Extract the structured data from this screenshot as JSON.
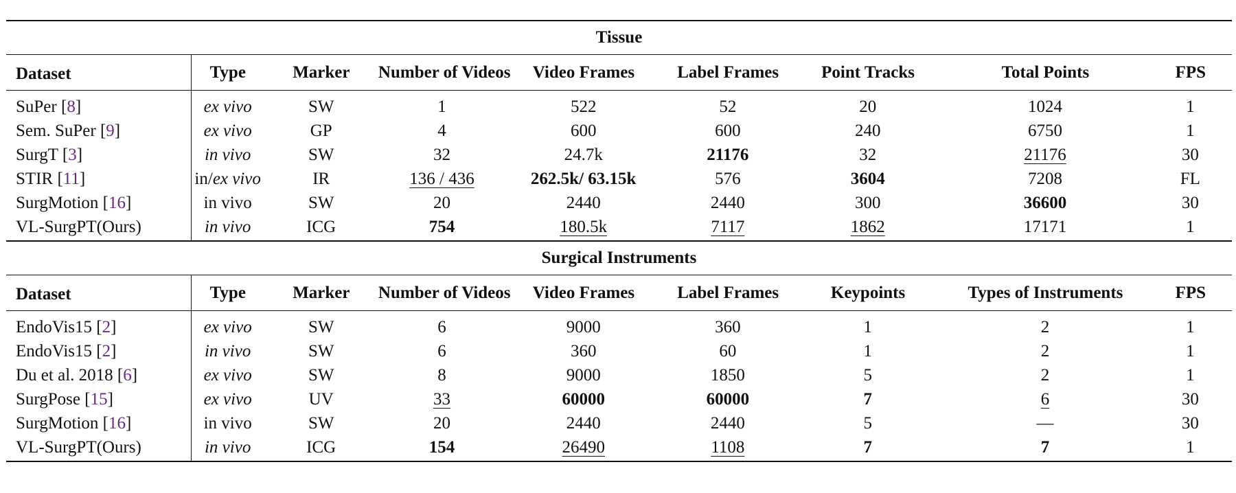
{
  "sections": [
    {
      "title": "Tissue",
      "headers": [
        "Dataset",
        "Type",
        "Marker",
        "Number of Videos",
        "Video Frames",
        "Label Frames",
        "Point Tracks",
        "Total Points",
        "FPS"
      ],
      "rows": [
        {
          "name": "SuPer",
          "cite": "8",
          "type": "ex vivo",
          "type_style": "italic",
          "marker": "SW",
          "cells": [
            {
              "v": "1"
            },
            {
              "v": "522"
            },
            {
              "v": "52"
            },
            {
              "v": "20"
            },
            {
              "v": "1024"
            },
            {
              "v": "1"
            }
          ]
        },
        {
          "name": "Sem. SuPer",
          "cite": "9",
          "type": "ex vivo",
          "type_style": "italic",
          "marker": "GP",
          "cells": [
            {
              "v": "4"
            },
            {
              "v": "600"
            },
            {
              "v": "600"
            },
            {
              "v": "240"
            },
            {
              "v": "6750"
            },
            {
              "v": "1"
            }
          ]
        },
        {
          "name": "SurgT",
          "cite": "3",
          "type": "in vivo",
          "type_style": "italic",
          "marker": "SW",
          "cells": [
            {
              "v": "32"
            },
            {
              "v": "24.7k"
            },
            {
              "v": "21176",
              "s": "b"
            },
            {
              "v": "32"
            },
            {
              "v": "21176",
              "s": "u"
            },
            {
              "v": "30"
            }
          ]
        },
        {
          "name": "STIR",
          "cite": "11",
          "type_prefix": "in/",
          "type": "ex vivo",
          "type_style": "mixed",
          "marker": "IR",
          "cells": [
            {
              "v": "136 / 436",
              "s": "u"
            },
            {
              "v": "262.5k/ 63.15k",
              "s": "b"
            },
            {
              "v": "576"
            },
            {
              "v": "3604",
              "s": "b"
            },
            {
              "v": "7208"
            },
            {
              "v": "FL"
            }
          ]
        },
        {
          "name": "SurgMotion",
          "cite": "16",
          "type": "in vivo",
          "type_style": "normal",
          "marker": "SW",
          "cells": [
            {
              "v": "20"
            },
            {
              "v": "2440"
            },
            {
              "v": "2440"
            },
            {
              "v": "300"
            },
            {
              "v": "36600",
              "s": "b"
            },
            {
              "v": "30"
            }
          ]
        },
        {
          "name": "VL-SurgPT(Ours)",
          "cite": "",
          "type": "in vivo",
          "type_style": "italic",
          "marker": "ICG",
          "cells": [
            {
              "v": "754",
              "s": "b"
            },
            {
              "v": "180.5k",
              "s": "u"
            },
            {
              "v": "7117",
              "s": "u"
            },
            {
              "v": "1862",
              "s": "u"
            },
            {
              "v": "17171"
            },
            {
              "v": "1"
            }
          ]
        }
      ]
    },
    {
      "title": "Surgical Instruments",
      "headers": [
        "Dataset",
        "Type",
        "Marker",
        "Number of Videos",
        "Video Frames",
        "Label Frames",
        "Keypoints",
        "Types of Instruments",
        "FPS"
      ],
      "rows": [
        {
          "name": "EndoVis15",
          "cite": "2",
          "type": "ex vivo",
          "type_style": "italic",
          "marker": "SW",
          "cells": [
            {
              "v": "6"
            },
            {
              "v": "9000"
            },
            {
              "v": "360"
            },
            {
              "v": "1"
            },
            {
              "v": "2"
            },
            {
              "v": "1"
            }
          ]
        },
        {
          "name": "EndoVis15",
          "cite": "2",
          "type": "in vivo",
          "type_style": "italic",
          "marker": "SW",
          "cells": [
            {
              "v": "6"
            },
            {
              "v": "360"
            },
            {
              "v": "60"
            },
            {
              "v": "1"
            },
            {
              "v": "2"
            },
            {
              "v": "1"
            }
          ]
        },
        {
          "name": "Du et al. 2018",
          "cite": "6",
          "type": "ex vivo",
          "type_style": "italic",
          "marker": "SW",
          "cells": [
            {
              "v": "8"
            },
            {
              "v": "9000"
            },
            {
              "v": "1850"
            },
            {
              "v": "5"
            },
            {
              "v": "2"
            },
            {
              "v": "1"
            }
          ]
        },
        {
          "name": "SurgPose",
          "cite": "15",
          "type": "ex vivo",
          "type_style": "italic",
          "marker": "UV",
          "cells": [
            {
              "v": "33",
              "s": "u"
            },
            {
              "v": "60000",
              "s": "b"
            },
            {
              "v": "60000",
              "s": "b"
            },
            {
              "v": "7",
              "s": "b"
            },
            {
              "v": "6",
              "s": "u"
            },
            {
              "v": "30"
            }
          ]
        },
        {
          "name": "SurgMotion",
          "cite": "16",
          "type": "in vivo",
          "type_style": "normal",
          "marker": "SW",
          "cells": [
            {
              "v": "20"
            },
            {
              "v": "2440"
            },
            {
              "v": "2440"
            },
            {
              "v": "5"
            },
            {
              "v": "—"
            },
            {
              "v": "30"
            }
          ]
        },
        {
          "name": "VL-SurgPT(Ours)",
          "cite": "",
          "type": "in vivo",
          "type_style": "italic",
          "marker": "ICG",
          "cells": [
            {
              "v": "154",
              "s": "b"
            },
            {
              "v": "26490",
              "s": "u"
            },
            {
              "v": "1108",
              "s": "u"
            },
            {
              "v": "7",
              "s": "b"
            },
            {
              "v": "7",
              "s": "b"
            },
            {
              "v": "1"
            }
          ]
        }
      ]
    }
  ],
  "colors": {
    "citation": "#6a2a8a",
    "text": "#111111"
  }
}
